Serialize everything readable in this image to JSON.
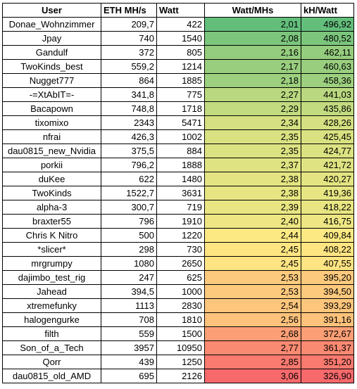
{
  "columns": {
    "user": "User",
    "eth": "ETH MH/s",
    "watt": "Watt",
    "watt_per_mhs": "Watt/MHs",
    "kh_per_watt": "kH/Watt"
  },
  "rows": [
    {
      "user": "Donae_Wohnzimmer",
      "eth": "209,7",
      "watt": "422",
      "watt_per_mhs": "2,01",
      "kh_per_watt": "496,92",
      "bg": "#63be7b"
    },
    {
      "user": "Jpay",
      "eth": "740",
      "watt": "1540",
      "watt_per_mhs": "2,08",
      "kh_per_watt": "480,52",
      "bg": "#7bc57d"
    },
    {
      "user": "Gandulf",
      "eth": "372",
      "watt": "805",
      "watt_per_mhs": "2,16",
      "kh_per_watt": "462,11",
      "bg": "#95cd7e"
    },
    {
      "user": "TwoKinds_best",
      "eth": "559,2",
      "watt": "1214",
      "watt_per_mhs": "2,17",
      "kh_per_watt": "460,63",
      "bg": "#98ce7e"
    },
    {
      "user": "Nugget777",
      "eth": "864",
      "watt": "1885",
      "watt_per_mhs": "2,18",
      "kh_per_watt": "458,36",
      "bg": "#9cd07f"
    },
    {
      "user": "-=XtAbIT=-",
      "eth": "341,8",
      "watt": "775",
      "watt_per_mhs": "2,27",
      "kh_per_watt": "441,03",
      "bg": "#bad87f"
    },
    {
      "user": "Bacapown",
      "eth": "748,8",
      "watt": "1718",
      "watt_per_mhs": "2,29",
      "kh_per_watt": "435,86",
      "bg": "#c3db80"
    },
    {
      "user": "tixomixo",
      "eth": "2343",
      "watt": "5471",
      "watt_per_mhs": "2,34",
      "kh_per_watt": "428,26",
      "bg": "#d4e081"
    },
    {
      "user": "nfrai",
      "eth": "426,3",
      "watt": "1002",
      "watt_per_mhs": "2,35",
      "kh_per_watt": "425,45",
      "bg": "#d9e181"
    },
    {
      "user": "dau0815_new_Nvidia",
      "eth": "375,5",
      "watt": "884",
      "watt_per_mhs": "2,35",
      "kh_per_watt": "424,77",
      "bg": "#dbe281"
    },
    {
      "user": "porkii",
      "eth": "796,2",
      "watt": "1888",
      "watt_per_mhs": "2,37",
      "kh_per_watt": "421,72",
      "bg": "#e0e382"
    },
    {
      "user": "duKee",
      "eth": "622",
      "watt": "1480",
      "watt_per_mhs": "2,38",
      "kh_per_watt": "420,27",
      "bg": "#e4e482"
    },
    {
      "user": "TwoKinds",
      "eth": "1522,7",
      "watt": "3631",
      "watt_per_mhs": "2,38",
      "kh_per_watt": "419,36",
      "bg": "#e6e582"
    },
    {
      "user": "alpha-3",
      "eth": "300,7",
      "watt": "719",
      "watt_per_mhs": "2,39",
      "kh_per_watt": "418,22",
      "bg": "#e9e582"
    },
    {
      "user": "braxter55",
      "eth": "796",
      "watt": "1910",
      "watt_per_mhs": "2,40",
      "kh_per_watt": "416,75",
      "bg": "#ede683"
    },
    {
      "user": "Chris K Nitro",
      "eth": "500",
      "watt": "1220",
      "watt_per_mhs": "2,44",
      "kh_per_watt": "409,84",
      "bg": "#fde983"
    },
    {
      "user": "*slicer*",
      "eth": "298",
      "watt": "730",
      "watt_per_mhs": "2,45",
      "kh_per_watt": "408,22",
      "bg": "#fee582"
    },
    {
      "user": "mrgrumpy",
      "eth": "1080",
      "watt": "2650",
      "watt_per_mhs": "2,45",
      "kh_per_watt": "407,55",
      "bg": "#fee482"
    },
    {
      "user": "dajimbo_test_rig",
      "eth": "247",
      "watt": "625",
      "watt_per_mhs": "2,53",
      "kh_per_watt": "395,20",
      "bg": "#fdca7d"
    },
    {
      "user": "Jahead",
      "eth": "394,5",
      "watt": "1000",
      "watt_per_mhs": "2,53",
      "kh_per_watt": "394,50",
      "bg": "#fdc97d"
    },
    {
      "user": "xtremefunky",
      "eth": "1113",
      "watt": "2830",
      "watt_per_mhs": "2,54",
      "kh_per_watt": "393,29",
      "bg": "#fdc67c"
    },
    {
      "user": "halogengurke",
      "eth": "708",
      "watt": "1810",
      "watt_per_mhs": "2,56",
      "kh_per_watt": "391,16",
      "bg": "#fdc27b"
    },
    {
      "user": "filth",
      "eth": "559",
      "watt": "1500",
      "watt_per_mhs": "2,68",
      "kh_per_watt": "372,67",
      "bg": "#fc9f76"
    },
    {
      "user": "Son_of_a_Tech",
      "eth": "3957",
      "watt": "10950",
      "watt_per_mhs": "2,77",
      "kh_per_watt": "361,37",
      "bg": "#fb8a72"
    },
    {
      "user": "Qorr",
      "eth": "439",
      "watt": "1250",
      "watt_per_mhs": "2,85",
      "kh_per_watt": "351,20",
      "bg": "#fa7a6f"
    },
    {
      "user": "dau0815_old_AMD",
      "eth": "695",
      "watt": "2126",
      "watt_per_mhs": "3,06",
      "kh_per_watt": "326,90",
      "bg": "#f8696b"
    }
  ]
}
